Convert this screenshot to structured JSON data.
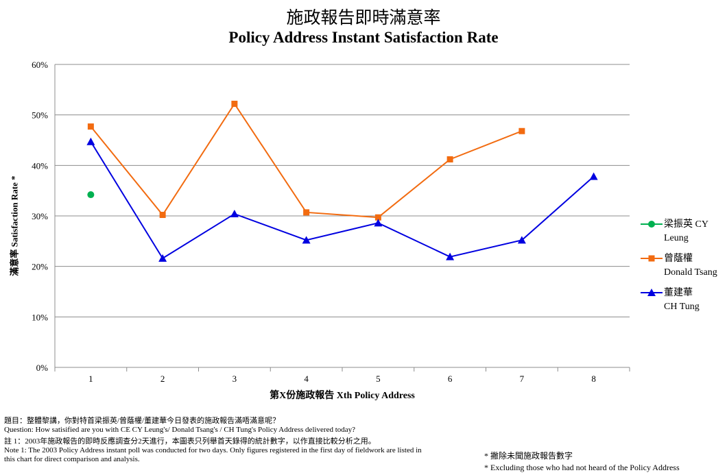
{
  "chart_data": {
    "type": "line",
    "title": "施政報告即時滿意率",
    "subtitle": "Policy Address  Instant Satisfaction Rate",
    "xlabel": "第X份施政報告 Xth Policy Address",
    "ylabel": "滿意率 Satisfaction Rate *",
    "x": [
      1,
      2,
      3,
      4,
      5,
      6,
      7,
      8
    ],
    "ylim": [
      0,
      60
    ],
    "yticks": [
      "0%",
      "10%",
      "20%",
      "30%",
      "40%",
      "50%",
      "60%"
    ],
    "grid": true,
    "legend_position": "right",
    "series": [
      {
        "name": "梁振英 CY Leung",
        "name_lines": [
          "梁振英 CY",
          "Leung"
        ],
        "color": "#00b050",
        "marker": "circle",
        "values": [
          34.2,
          null,
          null,
          null,
          null,
          null,
          null,
          null
        ]
      },
      {
        "name": "曾蔭權 Donald Tsang",
        "name_lines": [
          "曾蔭權",
          "Donald Tsang"
        ],
        "color": "#f26b10",
        "marker": "square",
        "values": [
          47.7,
          30.2,
          52.2,
          30.7,
          29.7,
          41.2,
          46.8,
          null
        ]
      },
      {
        "name": "董建華 CH Tung",
        "name_lines": [
          "董建華",
          "CH Tung"
        ],
        "color": "#0000e0",
        "marker": "triangle",
        "values": [
          44.7,
          21.6,
          30.4,
          25.2,
          28.6,
          21.9,
          25.2,
          37.8
        ]
      }
    ]
  },
  "notes": {
    "question_zh": "題目：整體黎講，你對特首梁振英/曾蔭權/董建華今日發表的施政報告滿唔滿意呢？",
    "question_en": "Question: How satisified are you with CE CY Leung's/  Donald Tsang's / CH Tung's Policy Address  delivered today?",
    "note1_zh": "註 1：2003年施政報告的即時反應調查分2天進行，本圖表只列舉首天錄得的統計數字，以作直接比較分析之用。",
    "note1_en_line1": "Note 1: The 2003 Policy Address instant poll was conducted for two days. Only figures registered  in the first day of fieldwork are listed in",
    "note1_en_line2": "this chart for direct comparison and analysis.",
    "footnote_zh": "* 撇除未聞施政報告數字",
    "footnote_en": "* Excluding  those who had not heard of the Policy  Address"
  }
}
